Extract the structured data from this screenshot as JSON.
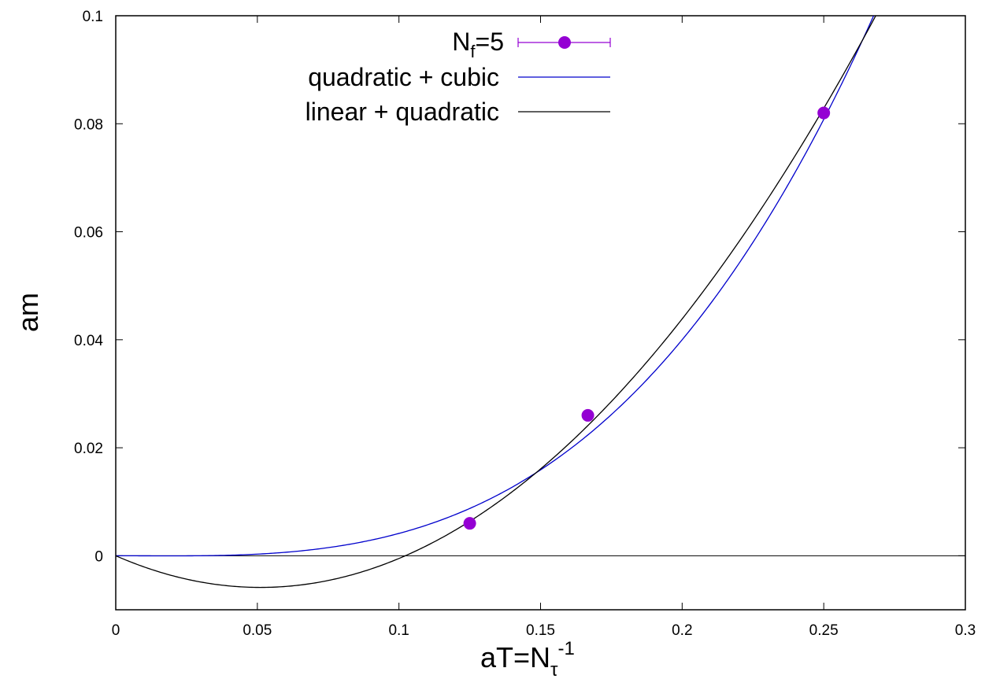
{
  "chart_data": {
    "type": "line",
    "title": "",
    "xlabel": {
      "main": "aT=N",
      "sub": "τ",
      "sup": "-1"
    },
    "ylabel": "am",
    "xlim": [
      0,
      0.3
    ],
    "ylim": [
      -0.01,
      0.1
    ],
    "grid": false,
    "legend_position": "top-right",
    "x_ticks": [
      "0",
      "0.05",
      "0.1",
      "0.15",
      "0.2",
      "0.25",
      "0.3"
    ],
    "y_ticks": [
      "0",
      "0.02",
      "0.04",
      "0.06",
      "0.08",
      "0.1"
    ],
    "series": [
      {
        "name": {
          "main": "N",
          "sub": "f",
          "rest": "=5"
        },
        "kind": "points",
        "color": "#9400d3",
        "points": [
          {
            "x": 0.125,
            "y": 0.006
          },
          {
            "x": 0.1667,
            "y": 0.026
          },
          {
            "x": 0.25,
            "y": 0.082
          }
        ]
      },
      {
        "name": "quadratic + cubic",
        "kind": "fit",
        "color": "#0000cc",
        "form": "a*x^2 + b*x^3",
        "coefficients": {
          "a": -0.172,
          "b": 5.86
        }
      },
      {
        "name": "linear + quadratic",
        "kind": "fit",
        "color": "#000000",
        "form": "a*x + b*x^2",
        "coefficients": {
          "a": -0.2293,
          "b": 2.243
        }
      }
    ]
  }
}
